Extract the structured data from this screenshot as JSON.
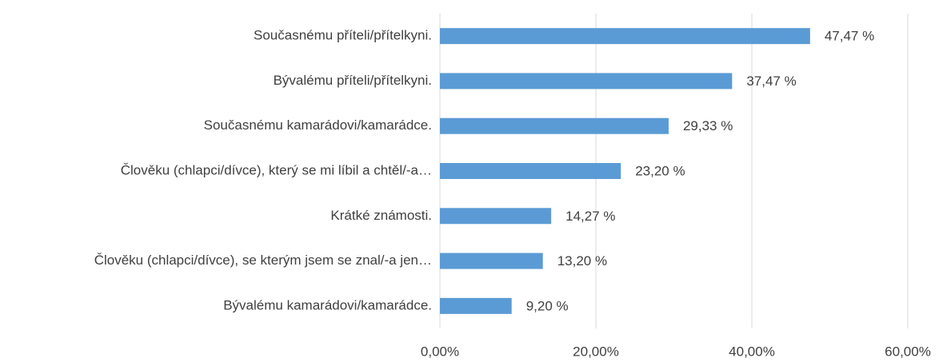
{
  "chart_data": {
    "type": "barh",
    "categories": [
      "Současnému příteli/přítelkyni.",
      "Bývalému příteli/přítelkyni.",
      "Současnému kamarádovi/kamarádce.",
      "Člověku (chlapci/dívce), který se mi líbil a chtěl/-a…",
      "Krátké známosti.",
      "Člověku (chlapci/dívce), se kterým jsem se znal/-a jen…",
      "Bývalému kamarádovi/kamarádce."
    ],
    "values": [
      47.47,
      37.47,
      29.33,
      23.2,
      14.27,
      13.2,
      9.2
    ],
    "value_labels": [
      "47,47 %",
      "37,47 %",
      "29,33 %",
      "23,20 %",
      "14,27 %",
      "13,20 %",
      "9,20 %"
    ],
    "color": "#5b9bd5",
    "xlim": [
      0,
      60
    ],
    "xticks": [
      {
        "value": 0,
        "label": "0,00%"
      },
      {
        "value": 20,
        "label": "20,00%"
      },
      {
        "value": 40,
        "label": "40,00%"
      },
      {
        "value": 60,
        "label": "60,00%"
      }
    ],
    "grid": true
  }
}
